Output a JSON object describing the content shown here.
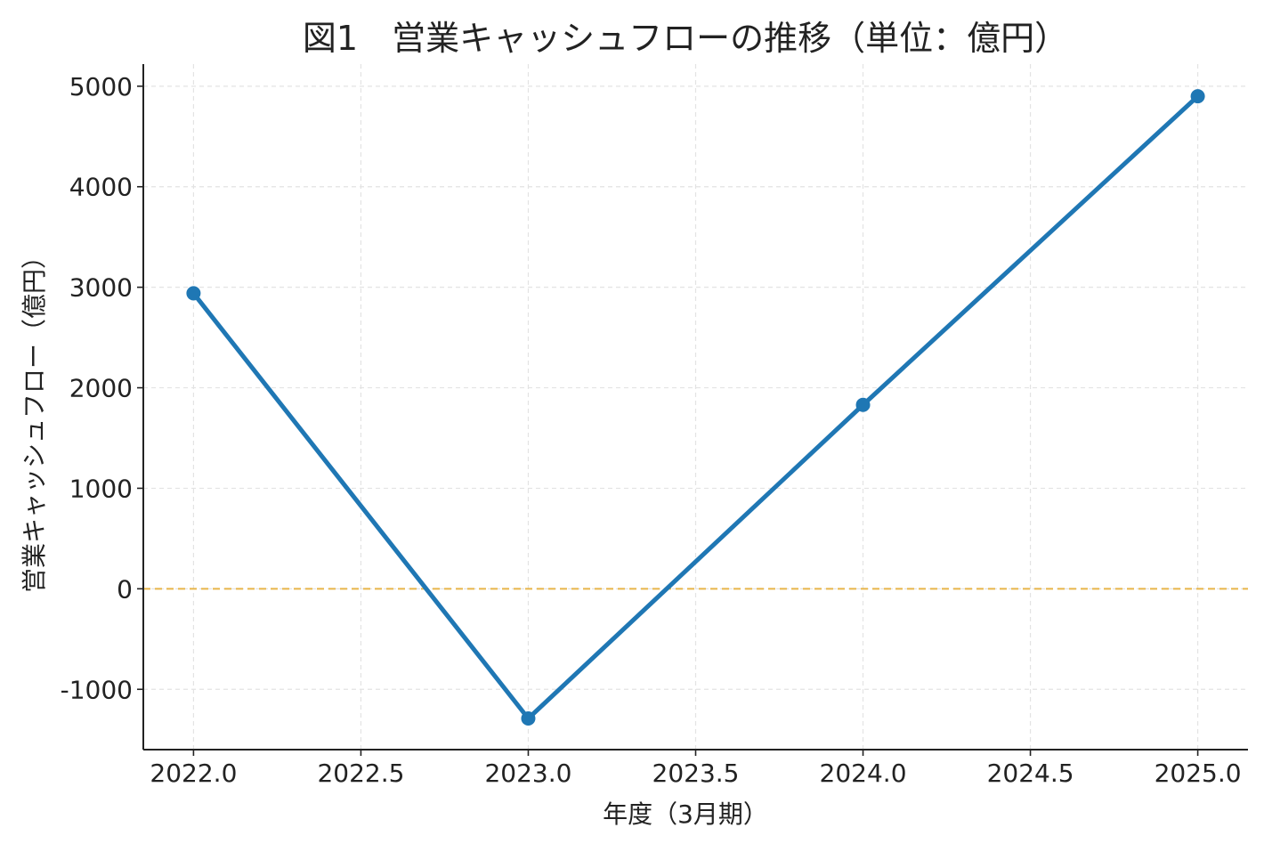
{
  "chart_data": {
    "type": "line",
    "title": "図1　営業キャッシュフローの推移（単位：億円）",
    "xlabel": "年度（3月期）",
    "ylabel": "営業キャッシュフロー（億円）",
    "x": [
      2022,
      2023,
      2024,
      2025
    ],
    "series": [
      {
        "values": [
          2940,
          -1290,
          1830,
          4900
        ],
        "color": "#1f77b4",
        "marker": "circle"
      }
    ],
    "xlim": [
      2021.85,
      2025.15
    ],
    "ylim": [
      -1600,
      5220
    ],
    "x_ticks": [
      2022.0,
      2022.5,
      2023.0,
      2023.5,
      2024.0,
      2024.5,
      2025.0
    ],
    "x_tick_labels": [
      "2022.0",
      "2022.5",
      "2023.0",
      "2023.5",
      "2024.0",
      "2024.5",
      "2025.0"
    ],
    "y_ticks": [
      -1000,
      0,
      1000,
      2000,
      3000,
      4000,
      5000
    ],
    "y_tick_labels": [
      "-1000",
      "0",
      "1000",
      "2000",
      "3000",
      "4000",
      "5000"
    ],
    "reference_line": {
      "y": 0,
      "color": "#e8b54a",
      "style": "dashed"
    },
    "grid": true,
    "legend": false
  }
}
